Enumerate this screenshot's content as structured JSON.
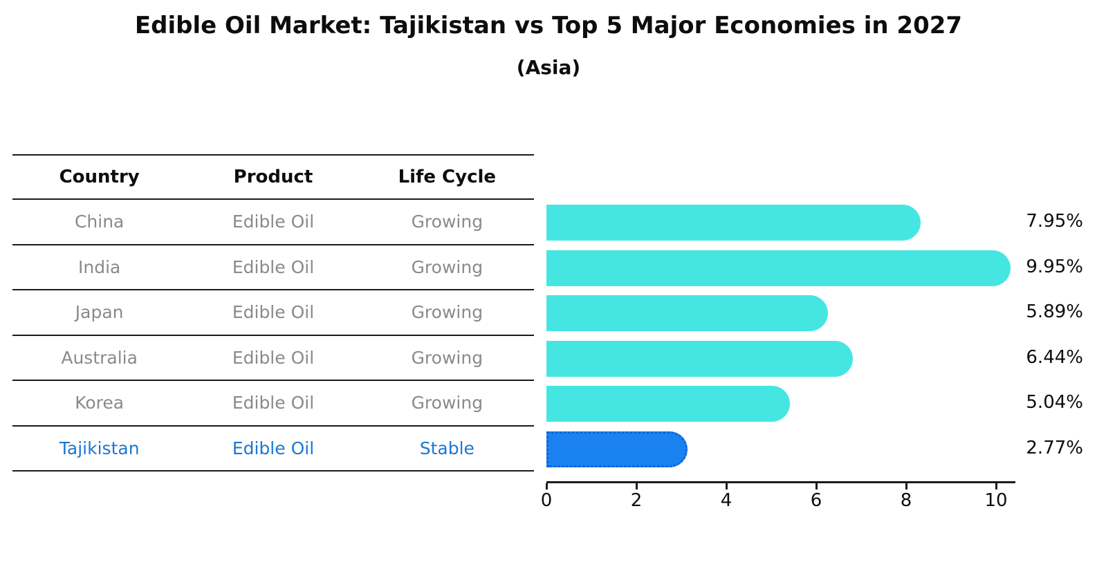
{
  "title": "Edible Oil Market: Tajikistan vs Top 5 Major Economies in 2027",
  "subtitle": "(Asia)",
  "table": {
    "headers": [
      "Country",
      "Product",
      "Life Cycle"
    ],
    "rows": [
      {
        "country": "China",
        "product": "Edible Oil",
        "life_cycle": "Growing",
        "highlight": false
      },
      {
        "country": "India",
        "product": "Edible Oil",
        "life_cycle": "Growing",
        "highlight": false
      },
      {
        "country": "Japan",
        "product": "Edible Oil",
        "life_cycle": "Growing",
        "highlight": false
      },
      {
        "country": "Australia",
        "product": "Edible Oil",
        "life_cycle": "Growing",
        "highlight": false
      },
      {
        "country": "Korea",
        "product": "Edible Oil",
        "life_cycle": "Growing",
        "highlight": false
      },
      {
        "country": "Tajikistan",
        "product": "Edible Oil",
        "life_cycle": "Stable",
        "highlight": true
      }
    ]
  },
  "chart_data": {
    "type": "bar",
    "orientation": "horizontal",
    "title": "Edible Oil Market: Tajikistan vs Top 5 Major Economies in 2027",
    "subtitle": "(Asia)",
    "categories": [
      "China",
      "India",
      "Japan",
      "Australia",
      "Korea",
      "Tajikistan"
    ],
    "values": [
      7.95,
      9.95,
      5.89,
      6.44,
      5.04,
      2.77
    ],
    "value_labels": [
      "7.95%",
      "9.95%",
      "5.89%",
      "6.44%",
      "5.04%",
      "2.77%"
    ],
    "x_ticks": [
      0,
      2,
      4,
      6,
      8,
      10
    ],
    "x_tick_labels": [
      "0",
      "2",
      "4",
      "6",
      "8",
      "10"
    ],
    "xlim": [
      0,
      10.4
    ],
    "grid": false,
    "legend": "none",
    "highlight_index": 5,
    "bar_color": "#45e6e2",
    "highlight_color": "#1a82f0",
    "highlight_border_color": "#1260d8",
    "highlight_text_color": "#1c78d2",
    "text_color": "#0d0d0d",
    "muted_text_color": "#8a8a8a"
  }
}
